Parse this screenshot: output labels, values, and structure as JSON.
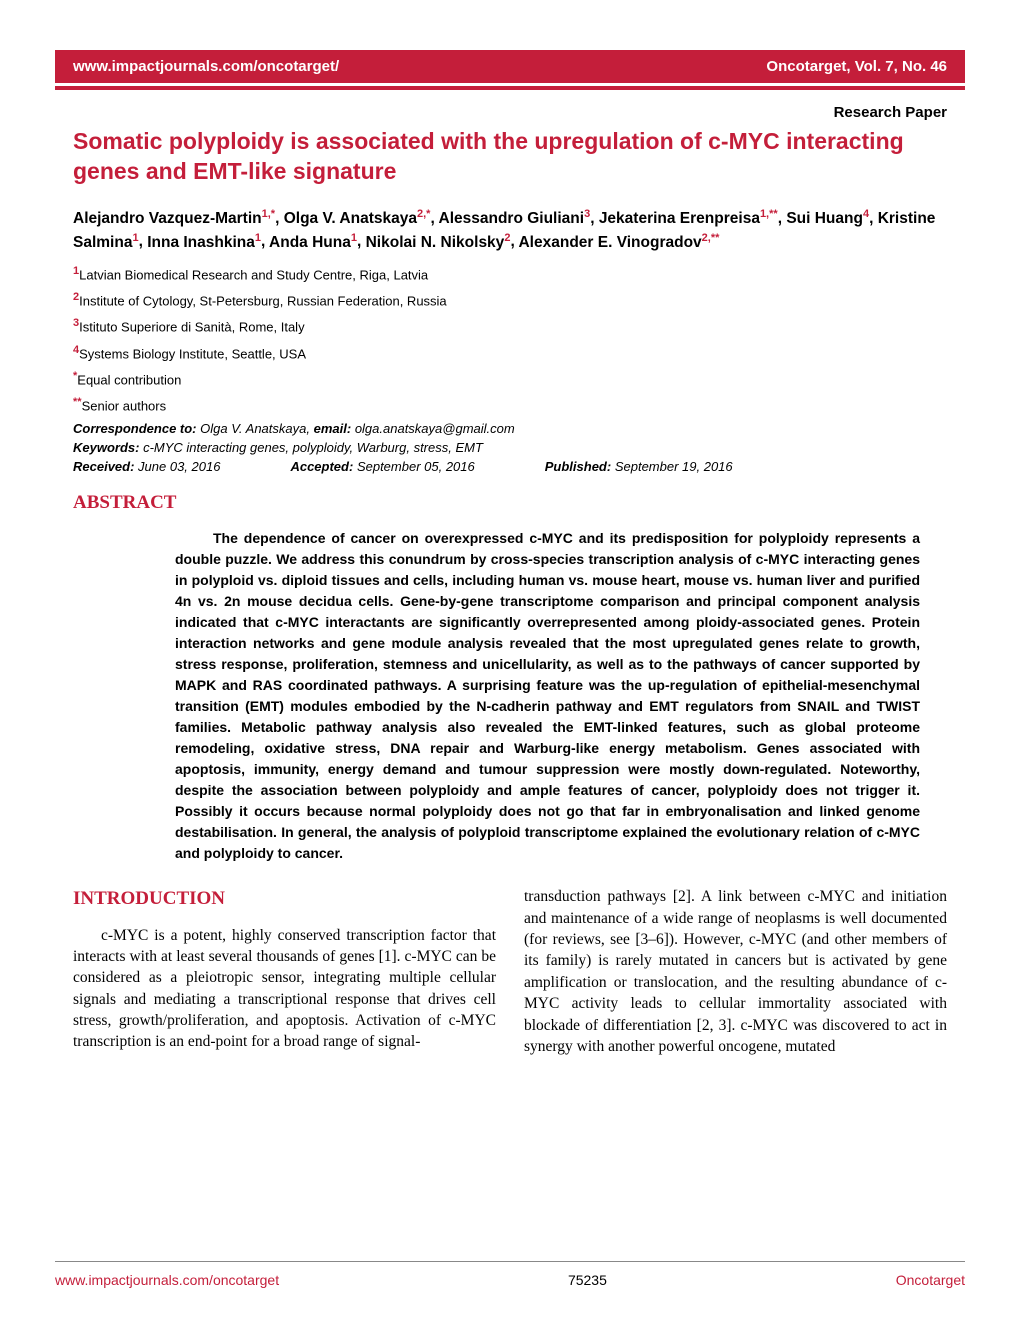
{
  "brand_color": "#c41e3a",
  "header": {
    "left": "www.impactjournals.com/oncotarget/",
    "right": "Oncotarget, Vol. 7, No. 46"
  },
  "paper_type": "Research Paper",
  "title": "Somatic polyploidy is associated with the upregulation of c-MYC interacting genes and EMT-like signature",
  "authors": [
    {
      "name": "Alejandro Vazquez-Martin",
      "aff": "1,*"
    },
    {
      "name": "Olga V. Anatskaya",
      "aff": "2,*"
    },
    {
      "name": "Alessandro Giuliani",
      "aff": "3"
    },
    {
      "name": "Jekaterina Erenpreisa",
      "aff": "1,**"
    },
    {
      "name": "Sui Huang",
      "aff": "4"
    },
    {
      "name": "Kristine Salmina",
      "aff": "1"
    },
    {
      "name": "Inna Inashkina",
      "aff": "1"
    },
    {
      "name": "Anda Huna",
      "aff": "1"
    },
    {
      "name": "Nikolai N. Nikolsky",
      "aff": "2"
    },
    {
      "name": "Alexander E. Vinogradov",
      "aff": "2,**"
    }
  ],
  "affiliations": [
    {
      "num": "1",
      "text": "Latvian Biomedical Research and Study Centre, Riga, Latvia"
    },
    {
      "num": "2",
      "text": "Institute of Cytology, St-Petersburg, Russian Federation, Russia"
    },
    {
      "num": "3",
      "text": "Istituto Superiore di Sanità, Rome, Italy"
    },
    {
      "num": "4",
      "text": "Systems Biology Institute, Seattle, USA"
    },
    {
      "num": "*",
      "text": "Equal contribution"
    },
    {
      "num": "**",
      "text": "Senior authors"
    }
  ],
  "correspondence": {
    "label": "Correspondence to:",
    "name": "Olga V. Anatskaya,",
    "email_label": "email:",
    "email": "olga.anatskaya@gmail.com"
  },
  "keywords": {
    "label": "Keywords:",
    "text": "c-MYC interacting genes, polyploidy, Warburg, stress, EMT"
  },
  "dates": {
    "received_label": "Received:",
    "received": "June 03, 2016",
    "accepted_label": "Accepted:",
    "accepted": "September 05, 2016",
    "published_label": "Published:",
    "published": "September 19, 2016"
  },
  "abstract_head": "ABSTRACT",
  "abstract_body": "The dependence of cancer on overexpressed c-MYC and its predisposition for polyploidy represents a double puzzle. We address this conundrum by cross-species transcription analysis of c-MYC interacting genes in polyploid vs. diploid tissues and cells, including human vs. mouse heart, mouse vs. human liver and purified 4n vs. 2n mouse decidua cells. Gene-by-gene transcriptome comparison and principal component analysis indicated that c-MYC interactants are significantly overrepresented among ploidy-associated genes. Protein interaction networks and gene module analysis revealed that the most upregulated genes relate to growth, stress response, proliferation, stemness and unicellularity, as well as to the pathways of cancer supported by MAPK and RAS coordinated pathways. A surprising feature was the up-regulation of epithelial-mesenchymal transition (EMT) modules embodied by the N-cadherin pathway and EMT regulators from SNAIL and TWIST families. Metabolic pathway analysis also revealed the EMT-linked features, such as global proteome remodeling, oxidative stress, DNA repair and Warburg-like energy metabolism. Genes associated with apoptosis, immunity, energy demand and tumour suppression were mostly down-regulated. Noteworthy, despite the association between polyploidy and ample features of cancer, polyploidy does not trigger it. Possibly it occurs because normal polyploidy does not go that far in embryonalisation and linked genome destabilisation. In general, the analysis of polyploid transcriptome explained the evolutionary relation of c-MYC and polyploidy to cancer.",
  "intro_head": "INTRODUCTION",
  "intro_col1": "c-MYC is a potent, highly conserved transcription factor that interacts with at least several thousands of genes [1]. c-MYC can be considered as a pleiotropic sensor, integrating multiple cellular signals and mediating a transcriptional response that drives cell stress, growth/proliferation, and apoptosis. Activation of c-MYC transcription is an end-point for a broad range of signal-",
  "intro_col2": "transduction pathways [2]. A link between c-MYC and initiation and maintenance of a wide range of neoplasms is well documented (for reviews, see [3–6]). However, c-MYC (and other members of its family) is rarely mutated in cancers but is activated by gene amplification or translocation, and the resulting abundance of c-MYC activity leads to cellular immortality associated with blockade of differentiation [2, 3]. c-MYC was discovered to act in synergy with another powerful oncogene, mutated",
  "footer": {
    "left": "www.impactjournals.com/oncotarget",
    "mid": "75235",
    "right": "Oncotarget"
  }
}
